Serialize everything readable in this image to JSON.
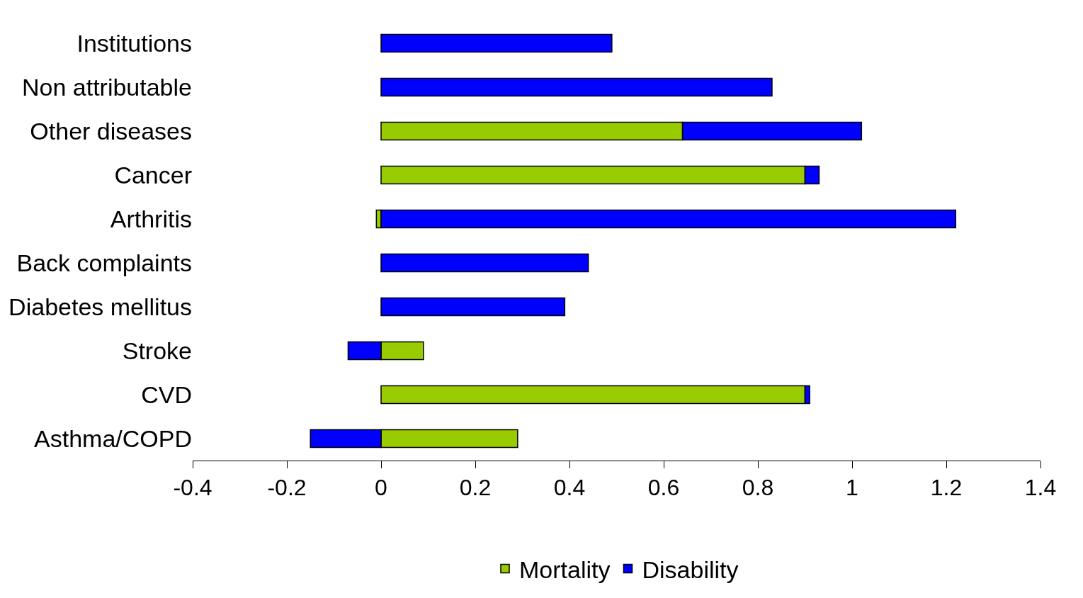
{
  "chart_data": {
    "type": "bar",
    "orientation": "horizontal",
    "stacked": true,
    "categories": [
      "Institutions",
      "Non attributable",
      "Other diseases",
      "Cancer",
      "Arthritis",
      "Back complaints",
      "Diabetes mellitus",
      "Stroke",
      "CVD",
      "Asthma/COPD"
    ],
    "series": [
      {
        "name": "Mortality",
        "color": "#99cc00",
        "values": [
          null,
          null,
          0.64,
          0.9,
          -0.01,
          null,
          null,
          0.09,
          0.9,
          0.29
        ]
      },
      {
        "name": "Disability",
        "color": "#0000ff",
        "values": [
          0.49,
          0.83,
          0.38,
          0.03,
          1.22,
          0.44,
          0.39,
          -0.07,
          0.01,
          -0.15
        ]
      }
    ],
    "xlim": [
      -0.4,
      1.4
    ],
    "xticks": [
      -0.4,
      -0.2,
      0,
      0.2,
      0.4,
      0.6,
      0.8,
      1,
      1.2,
      1.4
    ],
    "legend": "bottom"
  }
}
